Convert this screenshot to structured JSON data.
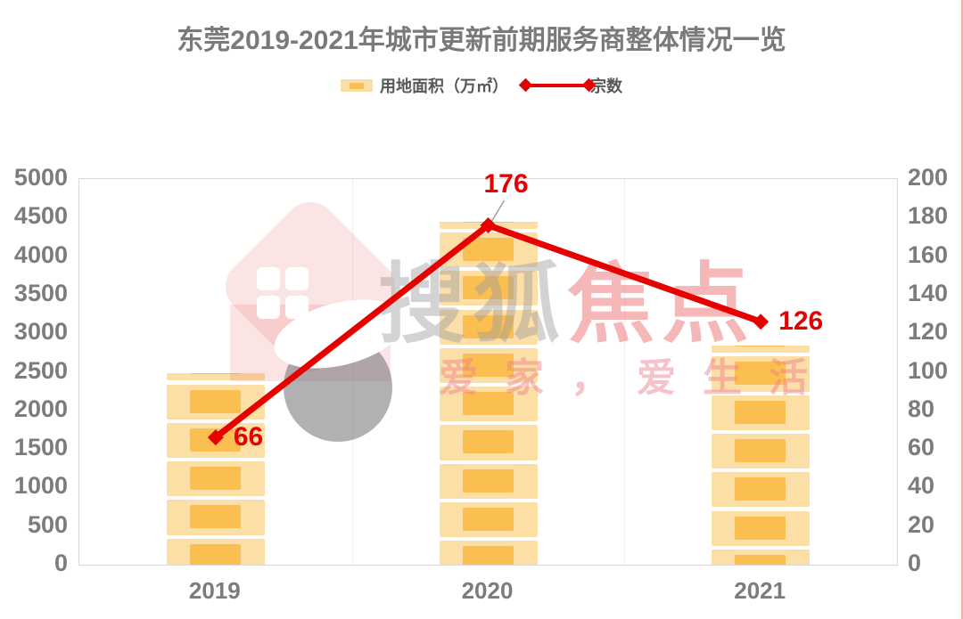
{
  "title": "东莞2019-2021年城市更新前期服务商整体情况一览",
  "legend": {
    "bar_label": "用地面积（万㎡）",
    "line_label": "宗数"
  },
  "watermark": {
    "brand_gray": "搜狐",
    "brand_red": "焦点",
    "slogan": "爱家，爱生活"
  },
  "colors": {
    "bar_light": "#FBDFA6",
    "bar_dark": "#FBBE50",
    "line_red": "#E60000",
    "point_label_red": "#E60000",
    "title_text": "#7A7A7A",
    "axis_text": "#7C7C7C",
    "legend_text": "#575757",
    "plot_border": "#D9D9D9",
    "gridline": "#EFEFEF",
    "leader_line": "#A0A0A0"
  },
  "chart_data": {
    "type": "combo (bar + line, dual axis)",
    "title": "东莞2019-2021年城市更新前期服务商整体情况一览",
    "categories": [
      "2019",
      "2020",
      "2021"
    ],
    "series": [
      {
        "name": "用地面积（万㎡）",
        "type": "bar",
        "axis": "left",
        "values": [
          2480,
          4450,
          2840
        ]
      },
      {
        "name": "宗数",
        "type": "line",
        "axis": "right",
        "values": [
          66,
          176,
          126
        ],
        "point_labels": [
          "66",
          "176",
          "126"
        ],
        "label_positions": [
          "right",
          "above",
          "right"
        ]
      }
    ],
    "left_axis": {
      "min": 0,
      "max": 5000,
      "step": 500,
      "ticks": [
        "5000",
        "4500",
        "4000",
        "3500",
        "3000",
        "2500",
        "2000",
        "1500",
        "1000",
        "500",
        "0"
      ]
    },
    "right_axis": {
      "min": 0,
      "max": 200,
      "step": 20,
      "ticks": [
        "200",
        "180",
        "160",
        "140",
        "120",
        "100",
        "80",
        "60",
        "40",
        "20",
        "0"
      ]
    },
    "legend_position": "top-center",
    "grid": "vertical category separators only, light gray plot border"
  }
}
